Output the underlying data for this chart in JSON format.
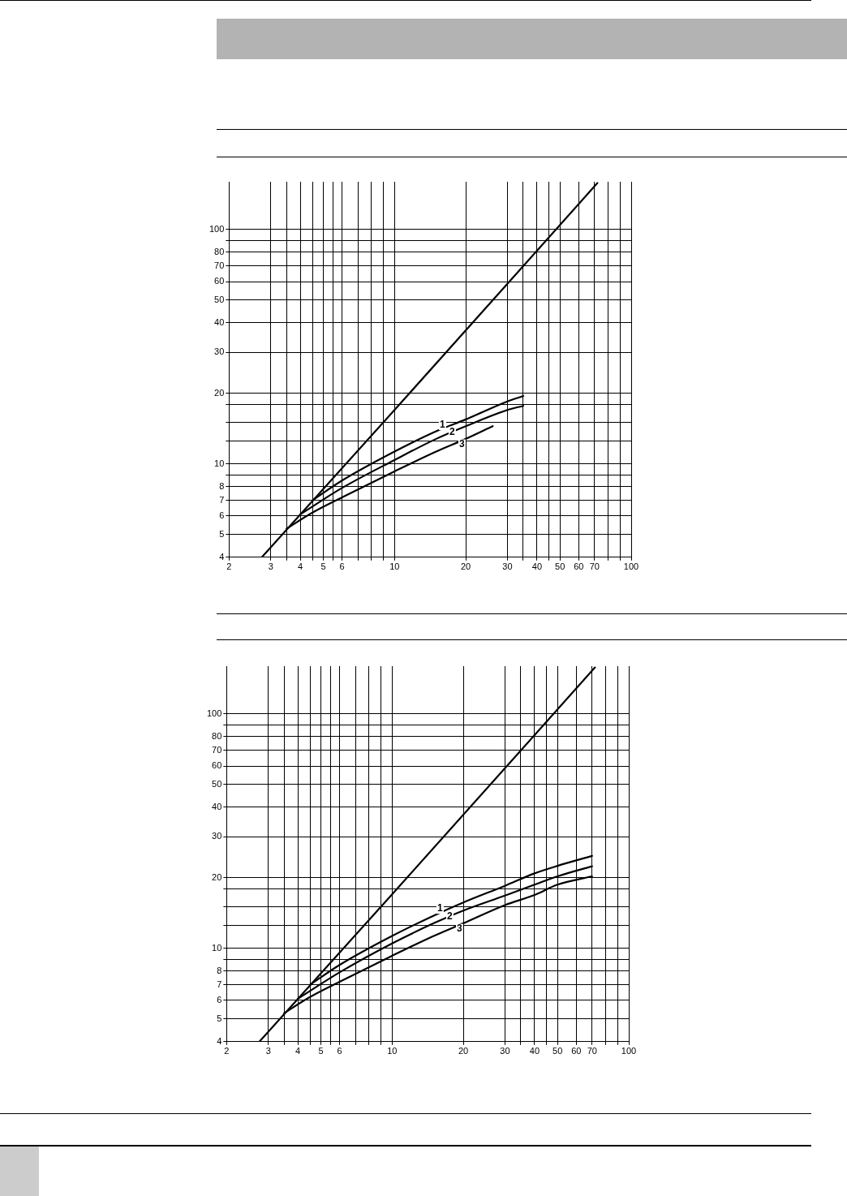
{
  "chart_data": [
    {
      "type": "line",
      "log": "xy",
      "grid": true,
      "marker": "none",
      "line_style": "solid",
      "xlim": [
        2,
        100
      ],
      "ylim": [
        4,
        160
      ],
      "xticks": [
        2,
        3,
        {
          "value": 3.5,
          "label": null
        },
        4,
        {
          "value": 4.5,
          "label": null
        },
        5,
        {
          "value": 5.5,
          "label": null
        },
        6,
        {
          "value": 7,
          "label": null
        },
        {
          "value": 8,
          "label": null
        },
        {
          "value": 9,
          "label": null
        },
        10,
        20,
        30,
        {
          "value": 35,
          "label": null
        },
        40,
        {
          "value": 45,
          "label": null
        },
        50,
        60,
        70,
        {
          "value": 80,
          "label": null
        },
        {
          "value": 90,
          "label": null
        },
        100
      ],
      "yticks": [
        4,
        5,
        6,
        7,
        8,
        {
          "value": 9,
          "label": null
        },
        10,
        {
          "value": 12.5,
          "label": null
        },
        {
          "value": 15,
          "label": null
        },
        {
          "value": 18,
          "label": null
        },
        20,
        30,
        40,
        50,
        60,
        70,
        80,
        {
          "value": 90,
          "label": null
        },
        100
      ],
      "series": [
        {
          "color": "#000000",
          "x": [
            2.75,
            10,
            72
          ],
          "values": [
            4,
            17,
            158
          ]
        },
        {
          "name": "1",
          "color": "#000000",
          "x": [
            4.5,
            6,
            10,
            15,
            20,
            30,
            35
          ],
          "values": [
            7,
            8.5,
            11.3,
            13.8,
            15.5,
            18.5,
            19.5
          ]
        },
        {
          "name": "2",
          "color": "#000000",
          "x": [
            4,
            6,
            10,
            15,
            20,
            30,
            35
          ],
          "values": [
            6.1,
            7.9,
            10.4,
            12.8,
            14.5,
            17,
            17.7
          ]
        },
        {
          "name": "3",
          "color": "#000000",
          "x": [
            3.5,
            4.5,
            6,
            10,
            15,
            20,
            26
          ],
          "values": [
            5.3,
            6.2,
            7.2,
            9.3,
            11.3,
            12.8,
            14.5
          ]
        }
      ]
    },
    {
      "type": "line",
      "log": "xy",
      "grid": true,
      "marker": "none",
      "line_style": "solid",
      "xlim": [
        2,
        100
      ],
      "ylim": [
        4,
        160
      ],
      "xticks": [
        2,
        3,
        {
          "value": 3.5,
          "label": null
        },
        4,
        {
          "value": 4.5,
          "label": null
        },
        5,
        {
          "value": 5.5,
          "label": null
        },
        6,
        {
          "value": 7,
          "label": null
        },
        {
          "value": 8,
          "label": null
        },
        {
          "value": 9,
          "label": null
        },
        10,
        20,
        30,
        {
          "value": 35,
          "label": null
        },
        40,
        {
          "value": 45,
          "label": null
        },
        50,
        60,
        70,
        {
          "value": 80,
          "label": null
        },
        {
          "value": 90,
          "label": null
        },
        100
      ],
      "yticks": [
        4,
        5,
        6,
        7,
        8,
        {
          "value": 9,
          "label": null
        },
        10,
        {
          "value": 12.5,
          "label": null
        },
        {
          "value": 15,
          "label": null
        },
        {
          "value": 18,
          "label": null
        },
        20,
        30,
        40,
        50,
        60,
        70,
        80,
        {
          "value": 90,
          "label": null
        },
        100
      ],
      "series": [
        {
          "color": "#000000",
          "x": [
            2.75,
            10,
            72
          ],
          "values": [
            4,
            17,
            158
          ]
        },
        {
          "name": "1",
          "color": "#000000",
          "x": [
            4.5,
            6,
            10,
            15,
            20,
            30,
            40,
            50,
            70
          ],
          "values": [
            7,
            8.5,
            11.3,
            13.8,
            15.7,
            18.5,
            20.9,
            22.5,
            24.8
          ]
        },
        {
          "name": "2",
          "color": "#000000",
          "x": [
            4,
            6,
            10,
            15,
            20,
            30,
            40,
            50,
            70
          ],
          "values": [
            6.1,
            7.9,
            10.5,
            12.8,
            14.5,
            16.8,
            18.7,
            20.3,
            22.4
          ]
        },
        {
          "name": "3",
          "color": "#000000",
          "x": [
            3.5,
            4.5,
            6,
            10,
            15,
            20,
            30,
            40,
            50,
            70
          ],
          "values": [
            5.3,
            6.2,
            7.2,
            9.3,
            11.3,
            12.8,
            15.3,
            16.9,
            18.7,
            20.3
          ]
        }
      ]
    }
  ]
}
